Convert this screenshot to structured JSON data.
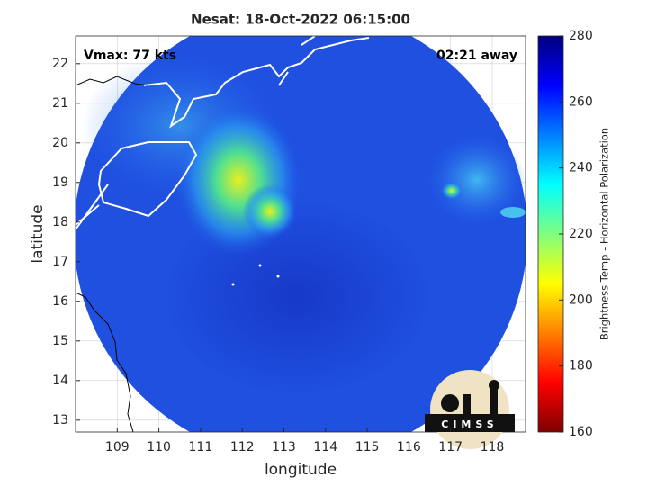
{
  "chart_data": {
    "type": "map",
    "title": "Nesat: 18-Oct-2022 06:15:00",
    "x_label": "longitude",
    "y_label": "latitude",
    "annotations": [
      "Vmax: 77 kts",
      "02:21 away"
    ],
    "logo_text": "CIMSS",
    "xlim": [
      108,
      118.8
    ],
    "xticks": [
      109,
      110,
      111,
      112,
      113,
      114,
      115,
      116,
      117,
      118
    ],
    "ylim": [
      12.7,
      22.7
    ],
    "yticks": [
      13,
      14,
      15,
      16,
      17,
      18,
      19,
      20,
      21,
      22
    ],
    "grid": true,
    "colorbar": {
      "label": "Brightness Temp - Horizontal Polarization",
      "clim": [
        160,
        280
      ],
      "ticks": [
        160,
        180,
        200,
        220,
        240,
        260,
        280
      ],
      "colormap": [
        "#7f0000",
        "#ff0000",
        "#ff7f00",
        "#ffff00",
        "#7fff7f",
        "#00ffff",
        "#007fff",
        "#0000ff",
        "#00007f"
      ]
    }
  }
}
